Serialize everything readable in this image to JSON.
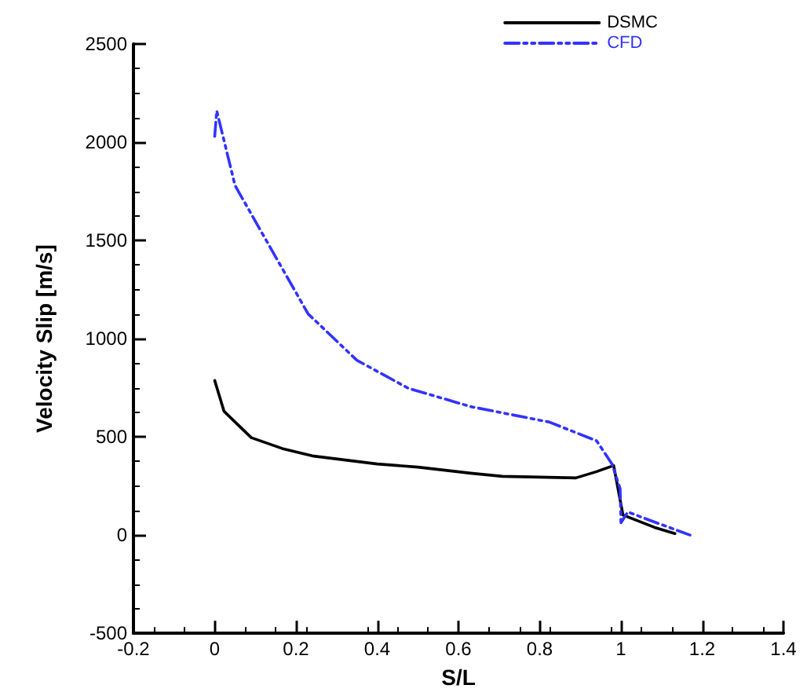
{
  "chart_data": {
    "type": "line",
    "xlabel": "S/L",
    "ylabel": "Velocity Slip [m/s]",
    "xlim": [
      -0.2,
      1.4
    ],
    "ylim": [
      -500,
      2500
    ],
    "xticks": [
      -0.2,
      0,
      0.2,
      0.4,
      0.6,
      0.8,
      1,
      1.2,
      1.4
    ],
    "yticks": [
      -500,
      0,
      500,
      1000,
      1500,
      2000,
      2500
    ],
    "grid": false,
    "legend": "top right",
    "marker": "none",
    "series": [
      {
        "name": "DSMC",
        "color": "#000000",
        "line_style": "solid",
        "x": [
          0,
          0.023,
          0.09,
          0.166,
          0.244,
          0.4,
          0.5,
          0.63,
          0.708,
          0.889,
          0.94,
          0.982,
          1.005,
          1.083,
          1.133
        ],
        "values": [
          787,
          630,
          496,
          441,
          402,
          362,
          346,
          315,
          299,
          291,
          323,
          354,
          102,
          39,
          8
        ]
      },
      {
        "name": "CFD",
        "color": "#3333ff",
        "line_style": "dashed",
        "x": [
          0,
          0.005,
          0.05,
          0.128,
          0.23,
          0.35,
          0.476,
          0.63,
          0.824,
          0.94,
          0.978,
          0.998,
          1.0,
          1.017,
          1.056,
          1.17
        ],
        "values": [
          2030,
          2160,
          1780,
          1496,
          1126,
          890,
          748,
          654,
          575,
          480,
          362,
          236,
          63,
          118,
          87,
          0
        ]
      }
    ]
  }
}
